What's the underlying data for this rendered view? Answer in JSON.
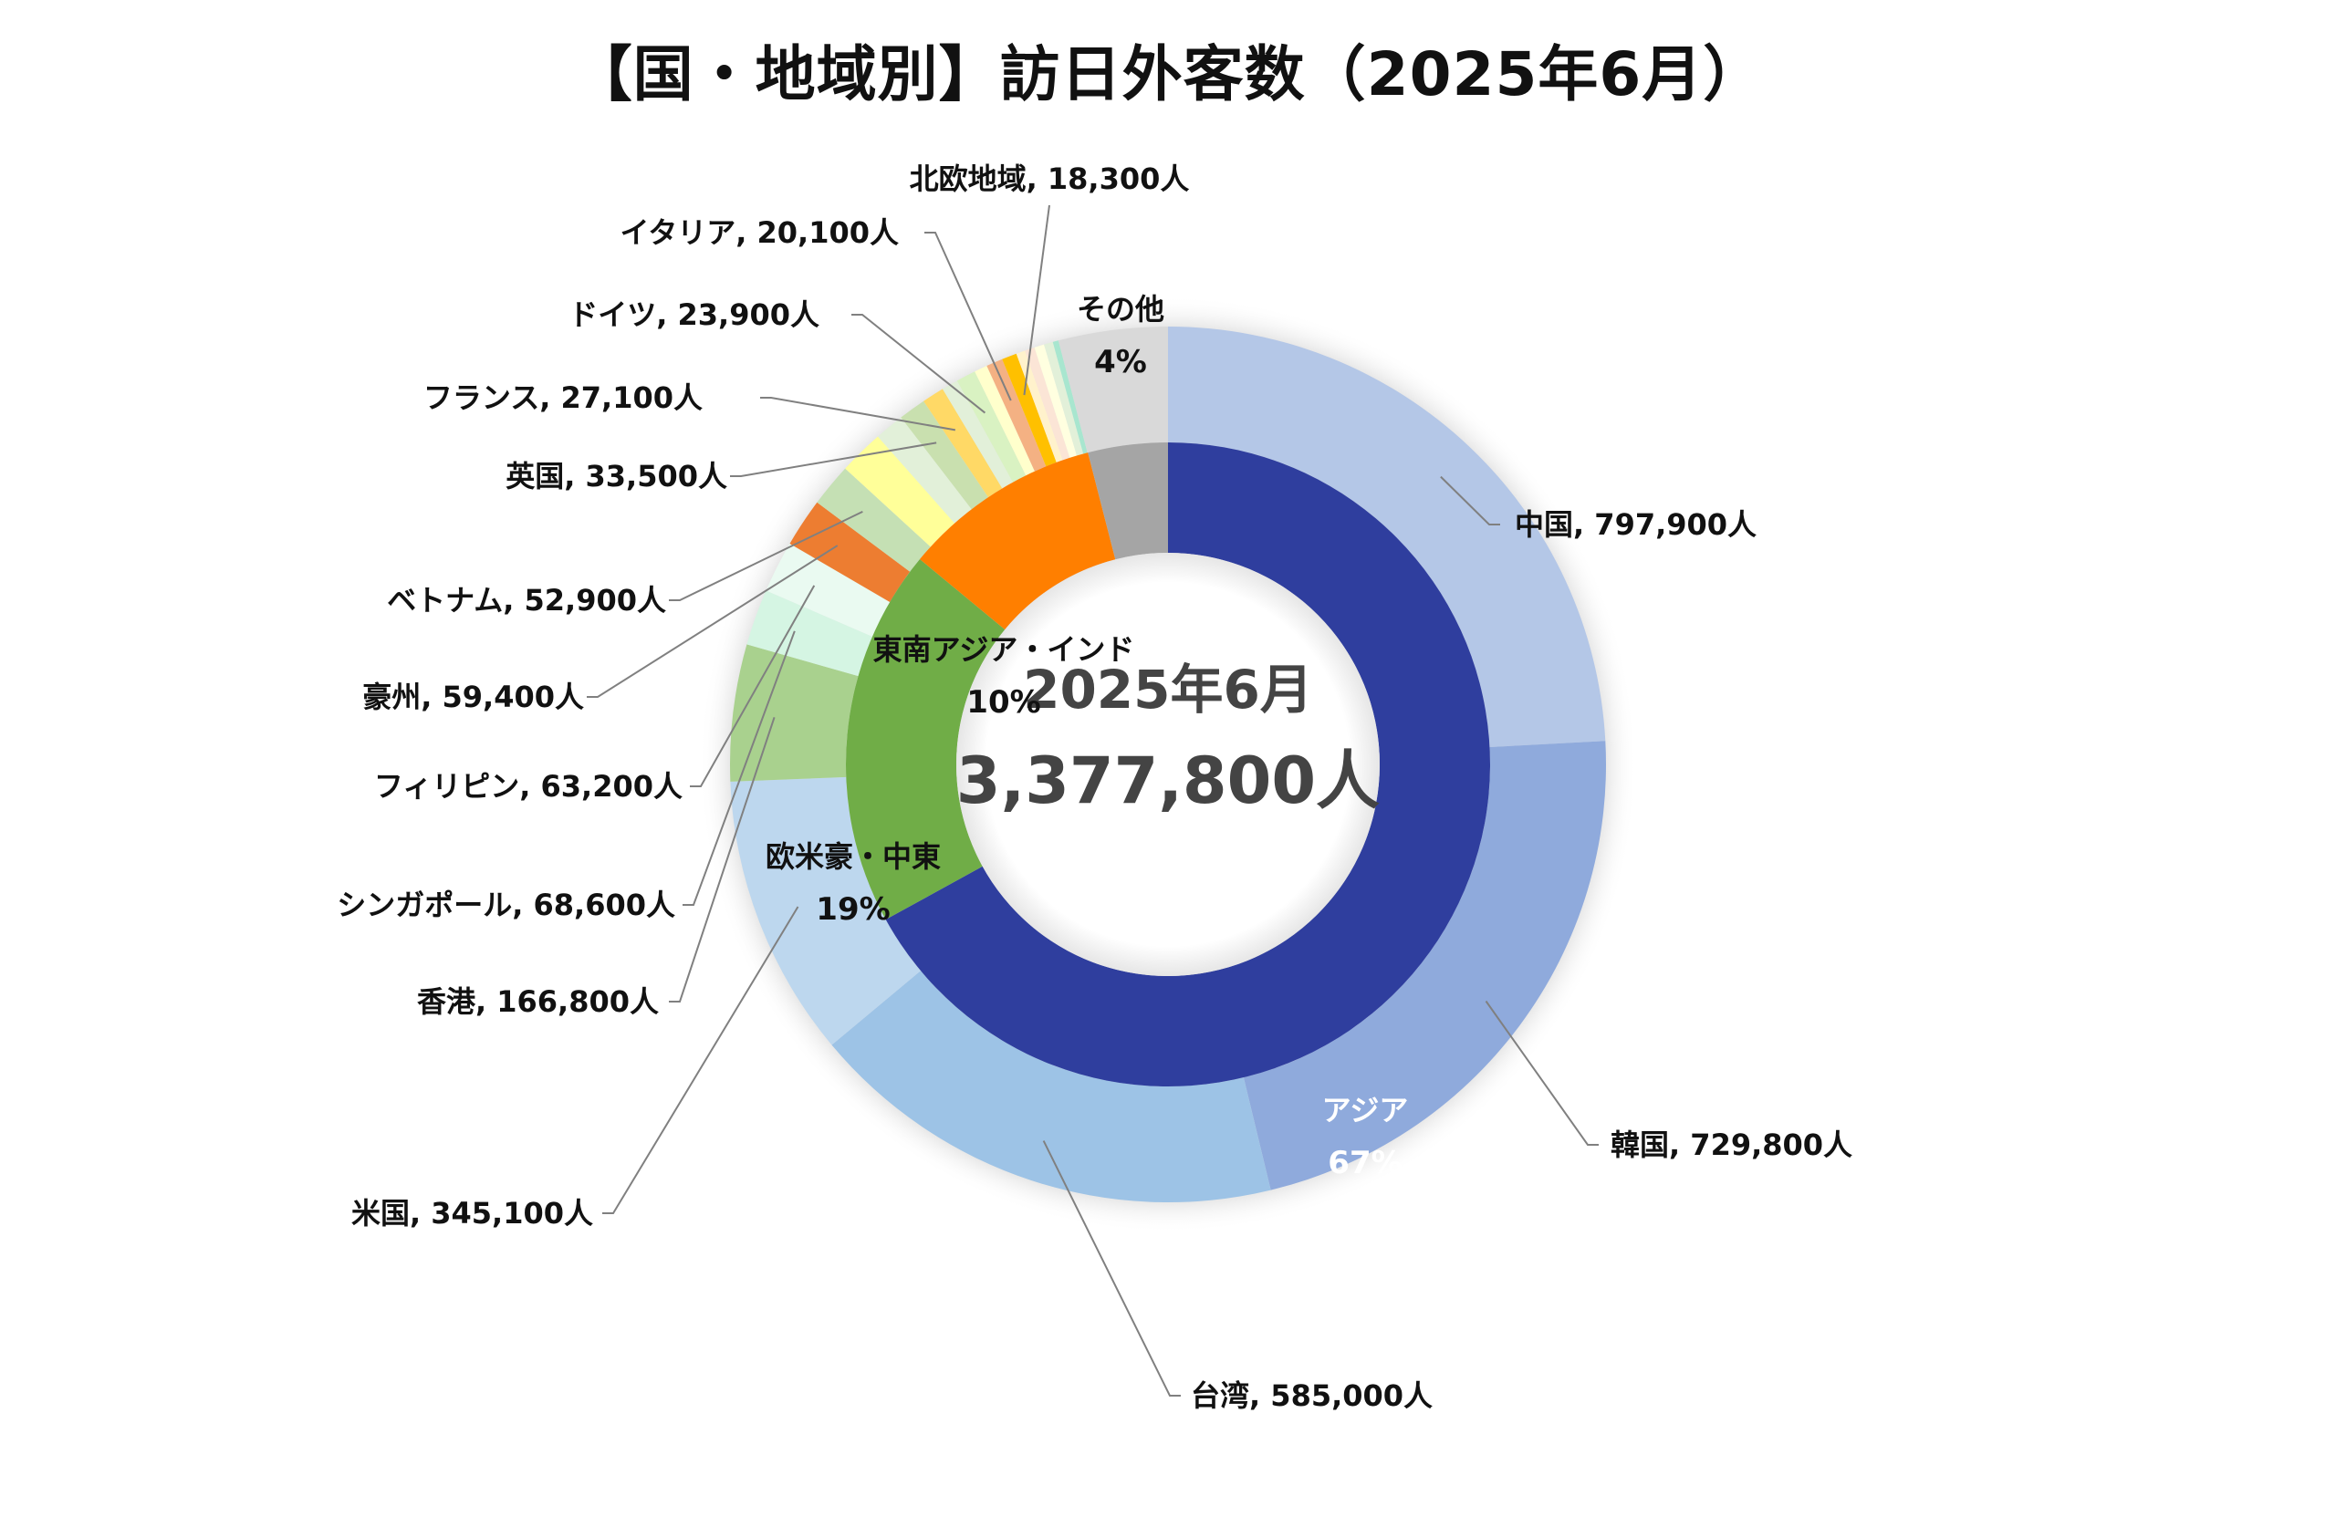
{
  "chart_data": {
    "type": "pie",
    "title": "【国・地域別】訪日外客数（2025年6月）",
    "center_text": {
      "line1": "2025年6月",
      "line2": "3,377,800人"
    },
    "outer_ring": [
      {
        "label": "中国, 797,900人",
        "value": 797900,
        "color": "#B4C7E7"
      },
      {
        "label": "韓国, 729,800人",
        "value": 729800,
        "color": "#8FAADC"
      },
      {
        "label": "台湾, 585,000人",
        "value": 585000,
        "color": "#9DC3E6"
      },
      {
        "label": "米国, 345,100人",
        "value": 345100,
        "color": "#BDD7EE"
      },
      {
        "label": "香港, 166,800人",
        "value": 166800,
        "color": "#A9D18E"
      },
      {
        "label": "シンガポール, 68,600人",
        "value": 68600,
        "color": "#D5F5E3"
      },
      {
        "label": "フィリピン, 63,200人",
        "value": 63200,
        "color": "#EAFAF1"
      },
      {
        "label": "豪州, 59,400人",
        "value": 59400,
        "color": "#ED7D31"
      },
      {
        "label": "ベトナム, 52,900人",
        "value": 52900,
        "color": "#C5E0B4"
      },
      {
        "label": "",
        "value": 55000,
        "color": "#FFFF99"
      },
      {
        "label": "",
        "value": 36000,
        "color": "#E2F0D9"
      },
      {
        "label": "英国, 33,500人",
        "value": 33500,
        "color": "#C9E0AF"
      },
      {
        "label": "フランス, 27,100人",
        "value": 27100,
        "color": "#FFD966"
      },
      {
        "label": "",
        "value": 20000,
        "color": "#E2F0D9"
      },
      {
        "label": "ドイツ, 23,900人",
        "value": 23900,
        "color": "#D9F2C2"
      },
      {
        "label": "",
        "value": 16000,
        "color": "#FFFFCC"
      },
      {
        "label": "イタリア, 20,100人",
        "value": 20100,
        "color": "#F4B183"
      },
      {
        "label": "北欧地域, 18,300人",
        "value": 18300,
        "color": "#FFC000"
      },
      {
        "label": "",
        "value": 11000,
        "color": "#FFF2CC"
      },
      {
        "label": "",
        "value": 12000,
        "color": "#FBE5D6"
      },
      {
        "label": "",
        "value": 12000,
        "color": "#FFFFE0"
      },
      {
        "label": "",
        "value": 11000,
        "color": "#E2F0D9"
      },
      {
        "label": "",
        "value": 7000,
        "color": "#A8E6CF"
      },
      {
        "label": "",
        "value": 133000,
        "color": "#D9D9D9"
      }
    ],
    "inner_ring": [
      {
        "name": "アジア",
        "pct": "67%",
        "value": 67,
        "color": "#2F3E9E",
        "text_color": "#ffffff"
      },
      {
        "name": "欧米豪・中東",
        "pct": "19%",
        "value": 19,
        "color": "#70AD47",
        "text_color": "#111111"
      },
      {
        "name": "東南アジア・インド",
        "pct": "10%",
        "value": 10,
        "color": "#FF7F00",
        "text_color": "#111111"
      },
      {
        "name": "その他",
        "pct": "4%",
        "value": 4,
        "color": "#A5A5A5",
        "text_color": "#111111"
      }
    ]
  }
}
